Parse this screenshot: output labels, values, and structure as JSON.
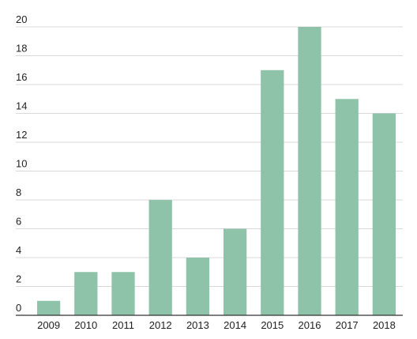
{
  "chart_data": {
    "type": "bar",
    "categories": [
      "2009",
      "2010",
      "2011",
      "2012",
      "2013",
      "2014",
      "2015",
      "2016",
      "2017",
      "2018"
    ],
    "values": [
      1,
      3,
      3,
      8,
      4,
      6,
      17,
      20,
      15,
      14
    ],
    "title": "",
    "xlabel": "",
    "ylabel": "",
    "ylim": [
      0,
      20
    ],
    "yticks": [
      0,
      2,
      4,
      6,
      8,
      10,
      12,
      14,
      16,
      18,
      20
    ],
    "grid": true,
    "legend": "none",
    "colors": {
      "bar": "#8fc3a9",
      "grid": "#d9d9d9",
      "axis": "#333333",
      "text": "#222222"
    }
  }
}
